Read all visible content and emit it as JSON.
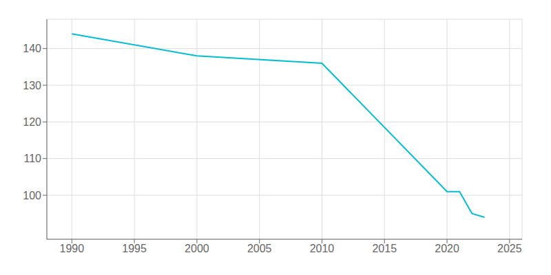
{
  "chart_data": {
    "type": "line",
    "x": [
      1990,
      2000,
      2010,
      2020,
      2021,
      2022,
      2023
    ],
    "values": [
      144,
      138,
      136,
      101,
      101,
      95,
      94
    ],
    "color": "#00BCD4",
    "xlim": [
      1988,
      2026
    ],
    "ylim": [
      88,
      148
    ],
    "xticks": [
      1990,
      1995,
      2000,
      2005,
      2010,
      2015,
      2020,
      2025
    ],
    "yticks": [
      100,
      110,
      120,
      130,
      140
    ],
    "grid": true
  }
}
